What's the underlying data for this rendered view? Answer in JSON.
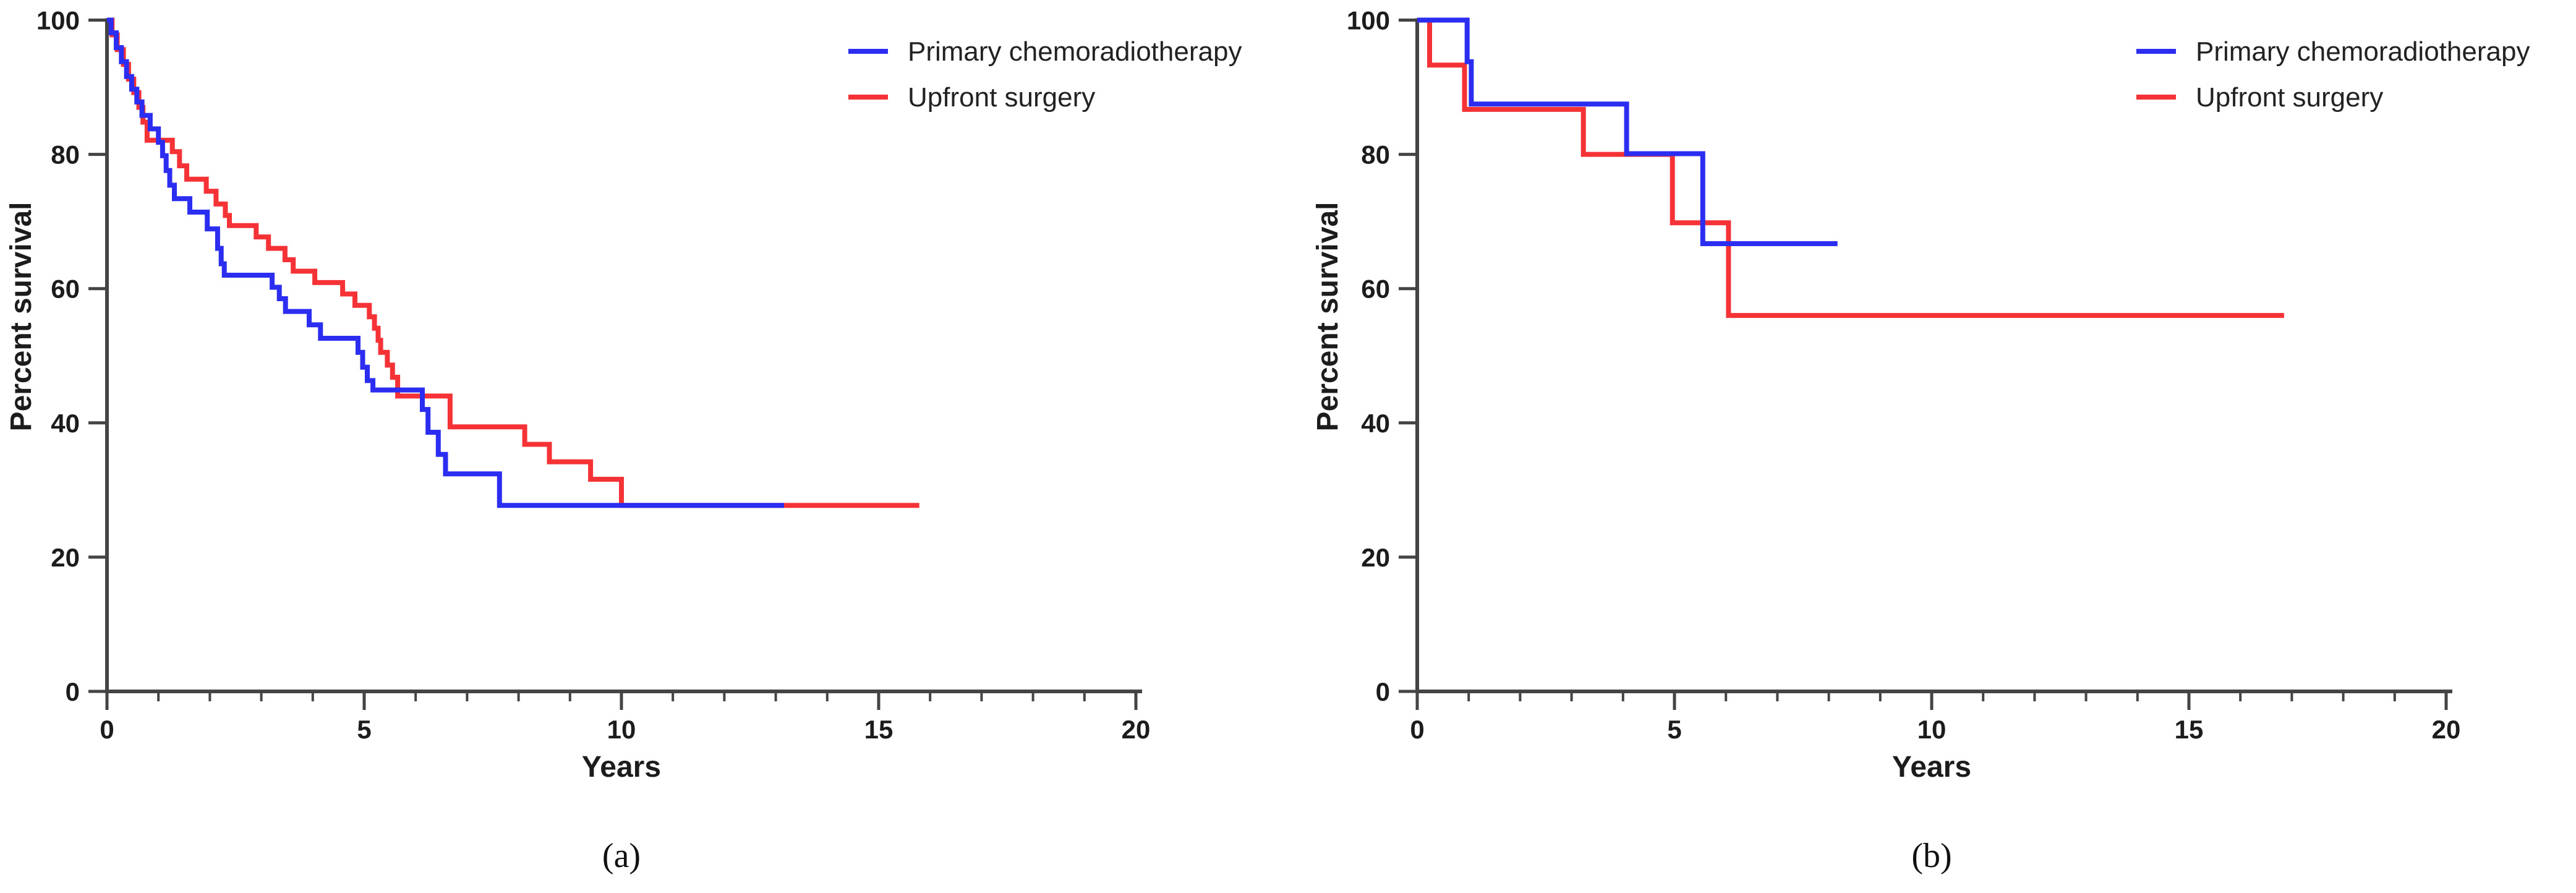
{
  "figure": {
    "background": "#ffffff"
  },
  "legend": {
    "primary_label": "Primary chemoradiotherapy",
    "surgery_label": "Upfront surgery"
  },
  "chart_data": [
    {
      "type": "line",
      "subtype": "kaplan_meier_step",
      "panel": "a",
      "caption": "(a)",
      "xlabel": "Years",
      "ylabel": "Percent survival",
      "xlim": [
        0,
        20
      ],
      "ylim": [
        0,
        100
      ],
      "x_ticks": [
        0,
        5,
        10,
        15,
        20
      ],
      "x_minor_tick_interval": 1,
      "y_ticks": [
        0,
        20,
        40,
        60,
        80,
        100
      ],
      "grid": false,
      "legend_position": "top-right",
      "axis_color": "#444444",
      "text_color": "#1c1c1c",
      "series": [
        {
          "name": "Primary chemoradiotherapy",
          "color": "#2b2df0",
          "end_time": 13.16,
          "steps": [
            [
              0,
              100
            ],
            [
              0.08,
              98.1
            ],
            [
              0.18,
              95.9
            ],
            [
              0.28,
              93.8
            ],
            [
              0.38,
              91.6
            ],
            [
              0.48,
              89.7
            ],
            [
              0.58,
              87.8
            ],
            [
              0.68,
              85.8
            ],
            [
              0.84,
              83.8
            ],
            [
              1.0,
              81.8
            ],
            [
              1.08,
              79.8
            ],
            [
              1.15,
              77.6
            ],
            [
              1.22,
              75.4
            ],
            [
              1.31,
              73.4
            ],
            [
              1.61,
              71.4
            ],
            [
              1.95,
              68.9
            ],
            [
              2.15,
              66.0
            ],
            [
              2.22,
              63.7
            ],
            [
              2.28,
              62.0
            ],
            [
              3.21,
              60.2
            ],
            [
              3.35,
              58.5
            ],
            [
              3.47,
              56.6
            ],
            [
              3.93,
              54.6
            ],
            [
              4.15,
              52.6
            ],
            [
              4.88,
              50.5
            ],
            [
              4.97,
              48.3
            ],
            [
              5.06,
              46.3
            ],
            [
              5.17,
              44.9
            ],
            [
              6.13,
              42.0
            ],
            [
              6.24,
              38.6
            ],
            [
              6.44,
              35.3
            ],
            [
              6.58,
              32.4
            ],
            [
              7.63,
              27.7
            ]
          ]
        },
        {
          "name": "Upfront surgery",
          "color": "#f53236",
          "end_time": 15.79,
          "steps": [
            [
              0,
              100
            ],
            [
              0.1,
              97.8
            ],
            [
              0.2,
              95.6
            ],
            [
              0.32,
              93.4
            ],
            [
              0.42,
              91.2
            ],
            [
              0.52,
              89.2
            ],
            [
              0.62,
              87.0
            ],
            [
              0.7,
              84.8
            ],
            [
              0.78,
              82.1
            ],
            [
              1.27,
              80.4
            ],
            [
              1.41,
              78.3
            ],
            [
              1.55,
              76.3
            ],
            [
              1.93,
              74.5
            ],
            [
              2.12,
              72.6
            ],
            [
              2.3,
              70.9
            ],
            [
              2.38,
              69.4
            ],
            [
              2.9,
              67.7
            ],
            [
              3.14,
              66.0
            ],
            [
              3.46,
              64.3
            ],
            [
              3.62,
              62.6
            ],
            [
              4.04,
              60.9
            ],
            [
              4.58,
              59.2
            ],
            [
              4.82,
              57.5
            ],
            [
              5.1,
              55.8
            ],
            [
              5.2,
              54.1
            ],
            [
              5.27,
              52.3
            ],
            [
              5.32,
              50.5
            ],
            [
              5.45,
              48.6
            ],
            [
              5.55,
              46.8
            ],
            [
              5.65,
              44.0
            ],
            [
              6.67,
              39.4
            ],
            [
              8.12,
              36.8
            ],
            [
              8.6,
              34.2
            ],
            [
              9.4,
              31.6
            ],
            [
              10.0,
              27.7
            ]
          ]
        }
      ]
    },
    {
      "type": "line",
      "subtype": "kaplan_meier_step",
      "panel": "b",
      "caption": "(b)",
      "xlabel": "Years",
      "ylabel": "Percent survival",
      "xlim": [
        0,
        20
      ],
      "ylim": [
        0,
        100
      ],
      "x_ticks": [
        0,
        5,
        10,
        15,
        20
      ],
      "x_minor_tick_interval": 1,
      "y_ticks": [
        0,
        20,
        40,
        60,
        80,
        100
      ],
      "grid": false,
      "legend_position": "top-right",
      "axis_color": "#444444",
      "text_color": "#1c1c1c",
      "series": [
        {
          "name": "Primary chemoradiotherapy",
          "color": "#2b2df0",
          "end_time": 8.17,
          "steps": [
            [
              0,
              100
            ],
            [
              0.97,
              93.8
            ],
            [
              1.05,
              87.5
            ],
            [
              4.07,
              80.1
            ],
            [
              5.55,
              66.7
            ]
          ]
        },
        {
          "name": "Upfront surgery",
          "color": "#f53236",
          "end_time": 16.85,
          "steps": [
            [
              0,
              100
            ],
            [
              0.24,
              93.3
            ],
            [
              0.92,
              86.7
            ],
            [
              3.23,
              80.0
            ],
            [
              4.96,
              69.8
            ],
            [
              6.05,
              56.0
            ]
          ]
        }
      ]
    }
  ]
}
